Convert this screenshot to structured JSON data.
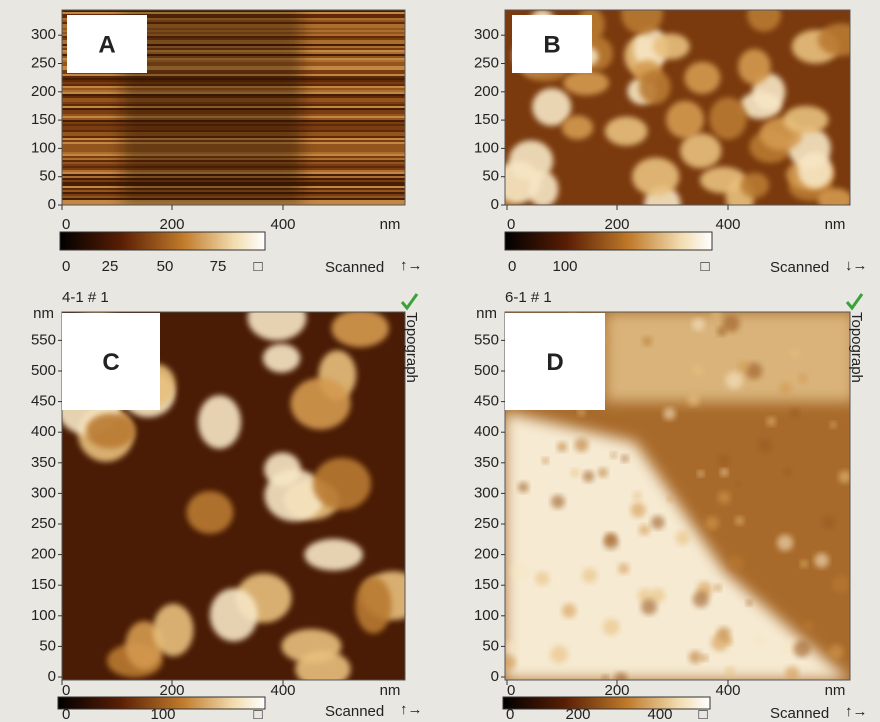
{
  "panels": [
    {
      "label": "A",
      "y_ticks": [
        "0",
        "50",
        "100",
        "150",
        "200",
        "250",
        "300"
      ],
      "x_ticks": [
        "0",
        "200",
        "400"
      ],
      "x_unit": "nm",
      "colorbar_ticks": [
        "0",
        "25",
        "50",
        "75",
        "□"
      ],
      "scanned": "Scanned",
      "scan_arrows": "↑→"
    },
    {
      "label": "B",
      "y_ticks": [
        "0",
        "50",
        "100",
        "150",
        "200",
        "250",
        "300"
      ],
      "x_ticks": [
        "0",
        "200",
        "400"
      ],
      "x_unit": "nm",
      "colorbar_ticks": [
        "0",
        "100",
        "□"
      ],
      "scanned": "Scanned",
      "scan_arrows": "↓→"
    },
    {
      "label": "C",
      "header": "4-1 # 1",
      "y_unit": "nm",
      "side_label": "Topograph",
      "y_ticks": [
        "0",
        "50",
        "100",
        "150",
        "200",
        "250",
        "300",
        "350",
        "400",
        "450",
        "500",
        "550"
      ],
      "x_ticks": [
        "0",
        "200",
        "400"
      ],
      "x_unit": "nm",
      "colorbar_ticks": [
        "0",
        "100",
        "□"
      ],
      "scanned": "Scanned",
      "scan_arrows": "↑→"
    },
    {
      "label": "D",
      "header": "6-1 # 1",
      "y_unit": "nm",
      "side_label": "Topograph",
      "y_ticks": [
        "0",
        "50",
        "100",
        "150",
        "200",
        "250",
        "300",
        "350",
        "400",
        "450",
        "500",
        "550"
      ],
      "x_ticks": [
        "0",
        "200",
        "400"
      ],
      "x_unit": "nm",
      "colorbar_ticks": [
        "0",
        "200",
        "400",
        "□"
      ],
      "scanned": "Scanned",
      "scan_arrows": "↑→"
    }
  ]
}
